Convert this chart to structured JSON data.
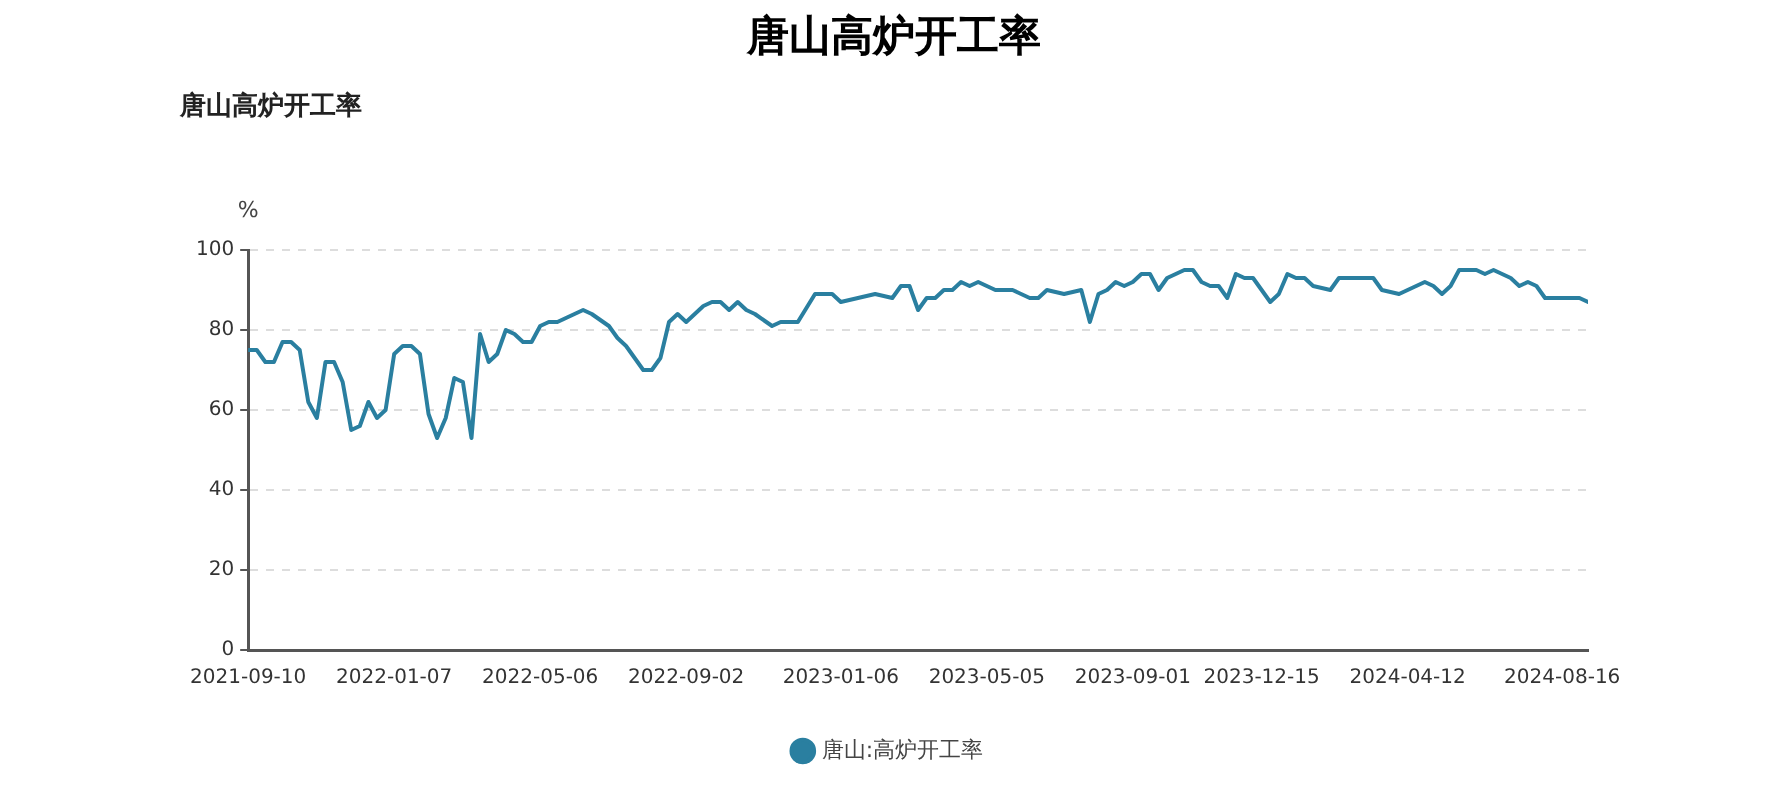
{
  "chart_data": {
    "type": "line",
    "title": "唐山高炉开工率",
    "subtitle": "唐山高炉开工率",
    "ylabel": "%",
    "x": [
      "2021-09-10",
      "2021-09-17",
      "2021-09-24",
      "2021-10-01",
      "2021-10-08",
      "2021-10-15",
      "2021-10-22",
      "2021-10-29",
      "2021-11-05",
      "2021-11-12",
      "2021-11-19",
      "2021-11-26",
      "2021-12-03",
      "2021-12-10",
      "2021-12-17",
      "2021-12-24",
      "2021-12-31",
      "2022-01-07",
      "2022-01-14",
      "2022-01-21",
      "2022-01-28",
      "2022-02-04",
      "2022-02-11",
      "2022-02-18",
      "2022-02-25",
      "2022-03-04",
      "2022-03-11",
      "2022-03-18",
      "2022-03-25",
      "2022-04-01",
      "2022-04-08",
      "2022-04-15",
      "2022-04-22",
      "2022-04-29",
      "2022-05-06",
      "2022-05-13",
      "2022-05-20",
      "2022-05-27",
      "2022-06-03",
      "2022-06-10",
      "2022-06-17",
      "2022-07-01",
      "2022-07-08",
      "2022-07-15",
      "2022-07-22",
      "2022-07-29",
      "2022-08-05",
      "2022-08-12",
      "2022-08-19",
      "2022-08-26",
      "2022-09-02",
      "2022-09-16",
      "2022-09-23",
      "2022-09-30",
      "2022-10-07",
      "2022-10-14",
      "2022-10-21",
      "2022-10-28",
      "2022-11-11",
      "2022-11-18",
      "2022-11-25",
      "2022-12-02",
      "2022-12-16",
      "2022-12-30",
      "2023-01-06",
      "2023-01-20",
      "2023-02-03",
      "2023-02-17",
      "2023-02-24",
      "2023-03-03",
      "2023-03-10",
      "2023-03-17",
      "2023-03-24",
      "2023-03-31",
      "2023-04-07",
      "2023-04-14",
      "2023-04-21",
      "2023-04-28",
      "2023-05-12",
      "2023-05-26",
      "2023-06-09",
      "2023-06-16",
      "2023-06-23",
      "2023-07-07",
      "2023-07-21",
      "2023-07-28",
      "2023-08-04",
      "2023-08-11",
      "2023-08-18",
      "2023-08-25",
      "2023-09-01",
      "2023-09-08",
      "2023-09-15",
      "2023-09-22",
      "2023-09-29",
      "2023-10-06",
      "2023-10-13",
      "2023-10-20",
      "2023-10-27",
      "2023-11-03",
      "2023-11-10",
      "2023-11-17",
      "2023-11-24",
      "2023-12-01",
      "2023-12-08",
      "2023-12-15",
      "2023-12-22",
      "2023-12-29",
      "2024-01-05",
      "2024-01-12",
      "2024-01-19",
      "2024-01-26",
      "2024-02-09",
      "2024-02-16",
      "2024-03-15",
      "2024-03-22",
      "2024-04-05",
      "2024-04-12",
      "2024-04-26",
      "2024-05-03",
      "2024-05-10",
      "2024-05-17",
      "2024-05-24",
      "2024-06-07",
      "2024-06-14",
      "2024-06-21",
      "2024-06-28",
      "2024-07-05",
      "2024-07-12",
      "2024-07-19",
      "2024-07-26",
      "2024-08-02",
      "2024-08-16",
      "2024-08-23",
      "2024-08-30",
      "2024-09-06"
    ],
    "series": [
      {
        "name": "唐山:高炉开工率",
        "color": "#2a7fa0",
        "values": [
          75,
          75,
          72,
          72,
          77,
          77,
          75,
          62,
          58,
          72,
          72,
          67,
          55,
          56,
          62,
          58,
          60,
          74,
          76,
          76,
          74,
          59,
          53,
          58,
          68,
          67,
          53,
          79,
          72,
          74,
          80,
          79,
          77,
          77,
          81,
          82,
          82,
          83,
          84,
          85,
          84,
          81,
          78,
          76,
          73,
          70,
          70,
          73,
          82,
          84,
          82,
          86,
          87,
          87,
          85,
          87,
          85,
          84,
          81,
          82,
          82,
          82,
          89,
          89,
          87,
          88,
          89,
          88,
          91,
          91,
          85,
          88,
          88,
          90,
          90,
          92,
          91,
          92,
          90,
          90,
          88,
          88,
          90,
          89,
          90,
          82,
          89,
          90,
          92,
          91,
          92,
          94,
          94,
          90,
          93,
          94,
          95,
          95,
          92,
          91,
          91,
          88,
          94,
          93,
          93,
          90,
          87,
          89,
          94,
          93,
          93,
          91,
          90,
          93,
          93,
          90,
          89,
          90,
          92,
          91,
          89,
          91,
          95,
          95,
          94,
          95,
          94,
          93,
          91,
          92,
          91,
          88,
          88,
          88,
          88,
          87
        ]
      }
    ],
    "xlim": [
      "2021-09-10",
      "2024-09-06"
    ],
    "xticks": [
      "2021-09-10",
      "2022-01-07",
      "2022-05-06",
      "2022-09-02",
      "2023-01-06",
      "2023-05-05",
      "2023-09-01",
      "2023-12-15",
      "2024-04-12",
      "2024-08-16"
    ],
    "ylim": [
      0,
      100
    ],
    "yticks": [
      0,
      20,
      40,
      60,
      80,
      100
    ],
    "grid": "y",
    "legend": "bottom",
    "marker": "none",
    "line_style": "solid"
  }
}
